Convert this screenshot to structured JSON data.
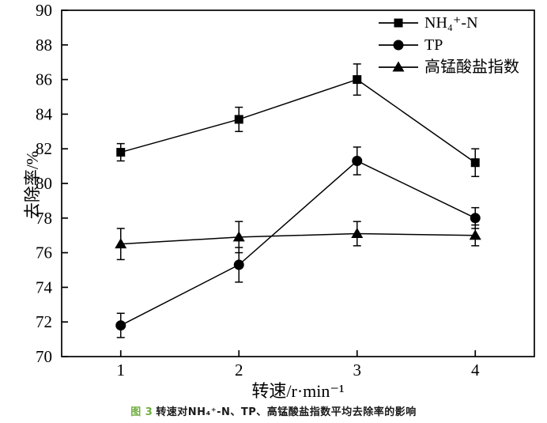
{
  "figure": {
    "background": "#ffffff",
    "line_color": "#000000"
  },
  "chart_data": {
    "type": "line",
    "title": "",
    "xlabel": "转速/r·min⁻¹",
    "ylabel": "去除率/%",
    "x": [
      1,
      2,
      3,
      4
    ],
    "x_tick_labels": [
      "1",
      "2",
      "3",
      "4"
    ],
    "ylim": [
      70,
      90
    ],
    "ytick_step": 2,
    "grid": false,
    "legend_position": "top-right-inside",
    "error_bars": true,
    "series": [
      {
        "name": "NH₄⁺-N",
        "marker": "square",
        "color": "#000000",
        "values": [
          81.8,
          83.7,
          86.0,
          81.2
        ],
        "errors": [
          0.5,
          0.7,
          0.9,
          0.8
        ]
      },
      {
        "name": "TP",
        "marker": "circle",
        "color": "#000000",
        "values": [
          71.8,
          75.3,
          81.3,
          78.0
        ],
        "errors": [
          0.7,
          1.0,
          0.8,
          0.6
        ]
      },
      {
        "name": "高锰酸盐指数",
        "marker": "triangle",
        "color": "#000000",
        "values": [
          76.5,
          76.9,
          77.1,
          77.0
        ],
        "errors": [
          0.9,
          0.9,
          0.7,
          0.6
        ]
      }
    ]
  },
  "caption": {
    "prefix": "图 3",
    "prefix_color": "#6fae3e",
    "text": "转速对NH₄⁺-N、TP、高锰酸盐指数平均去除率的影响"
  }
}
